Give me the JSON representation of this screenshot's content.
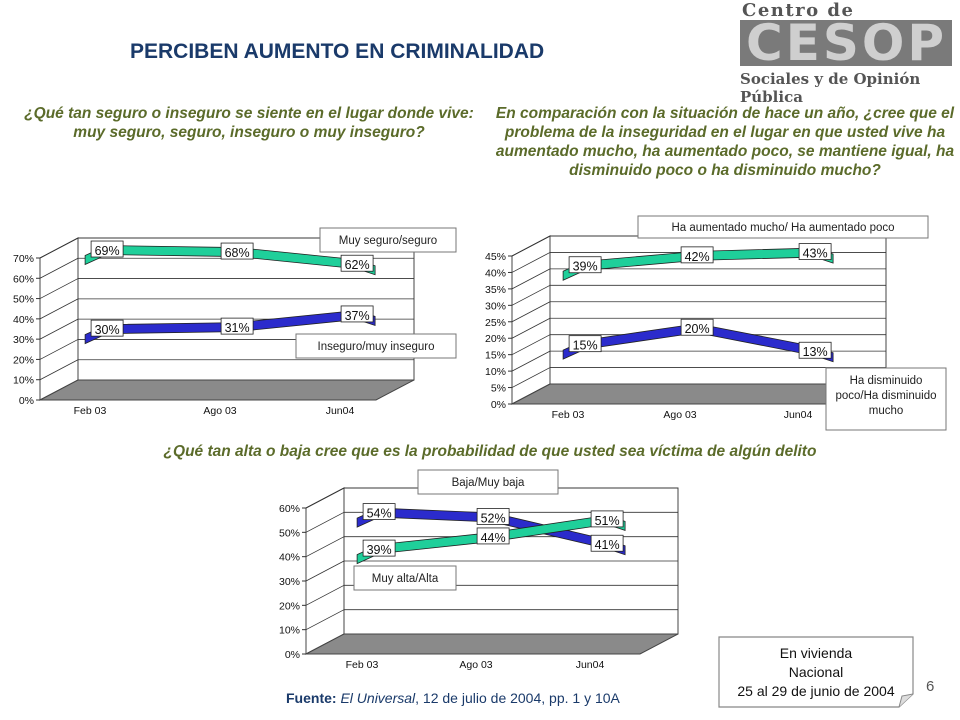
{
  "title": "PERCIBEN AUMENTO EN CRIMINALIDAD",
  "logo": {
    "top": "Centro de Estudios",
    "word": "CESOP",
    "bottom": "Sociales y de Opinión Pública"
  },
  "questions": {
    "q1": "¿Qué tan seguro o inseguro se siente en el lugar donde vive: muy seguro, seguro, inseguro o muy inseguro?",
    "q2": "En comparación con la situación de hace un año, ¿cree que el problema de la inseguridad en el lugar en que usted vive ha aumentado mucho, ha aumentado poco, se mantiene igual, ha disminuido poco o ha disminuido mucho?",
    "q3": "¿Qué tan alta o baja cree que es la probabilidad de que usted sea víctima de algún delito"
  },
  "chart_data": [
    {
      "type": "line",
      "categories": [
        "Feb 03",
        "Ago 03",
        "Jun04"
      ],
      "y_ticks": [
        "0%",
        "10%",
        "20%",
        "30%",
        "40%",
        "50%",
        "60%",
        "70%"
      ],
      "ylim": [
        0,
        70
      ],
      "series": [
        {
          "name": "Muy seguro/seguro",
          "values": [
            69,
            68,
            62
          ],
          "labels": [
            "69%",
            "68%",
            "62%"
          ],
          "color": "#1fcf9a"
        },
        {
          "name": "Inseguro/muy inseguro",
          "values": [
            30,
            31,
            37
          ],
          "labels": [
            "30%",
            "31%",
            "37%"
          ],
          "color": "#2b2bcc"
        }
      ]
    },
    {
      "type": "line",
      "categories": [
        "Feb 03",
        "Ago 03",
        "Jun04"
      ],
      "y_ticks": [
        "0%",
        "5%",
        "10%",
        "15%",
        "20%",
        "25%",
        "30%",
        "35%",
        "40%",
        "45%"
      ],
      "ylim": [
        0,
        45
      ],
      "series": [
        {
          "name": "Ha aumentado mucho/ Ha aumentado poco",
          "values": [
            39,
            42,
            43
          ],
          "labels": [
            "39%",
            "42%",
            "43%"
          ],
          "color": "#1fcf9a"
        },
        {
          "name": "Ha disminuido poco/Ha disminuido mucho",
          "values": [
            15,
            20,
            13
          ],
          "labels": [
            "15%",
            "20%",
            "13%"
          ],
          "color": "#2b2bcc"
        }
      ]
    },
    {
      "type": "line",
      "categories": [
        "Feb 03",
        "Ago 03",
        "Jun04"
      ],
      "y_ticks": [
        "0%",
        "10%",
        "20%",
        "30%",
        "40%",
        "50%",
        "60%"
      ],
      "ylim": [
        0,
        60
      ],
      "series": [
        {
          "name": "Baja/Muy baja",
          "values": [
            54,
            52,
            41
          ],
          "labels": [
            "54%",
            "52%",
            "41%"
          ],
          "color": "#2b2bcc"
        },
        {
          "name": "Muy alta/Alta",
          "values": [
            39,
            44,
            51
          ],
          "labels": [
            "39%",
            "44%",
            "51%"
          ],
          "color": "#1fcf9a"
        }
      ]
    }
  ],
  "note": {
    "line1": "En vivienda",
    "line2": "Nacional",
    "line3": "25 al 29 de junio de 2004"
  },
  "source": {
    "label": "Fuente:",
    "publication": "El Universal",
    "rest": ", 12 de julio de 2004, pp. 1 y 10A"
  },
  "page_number": "6"
}
